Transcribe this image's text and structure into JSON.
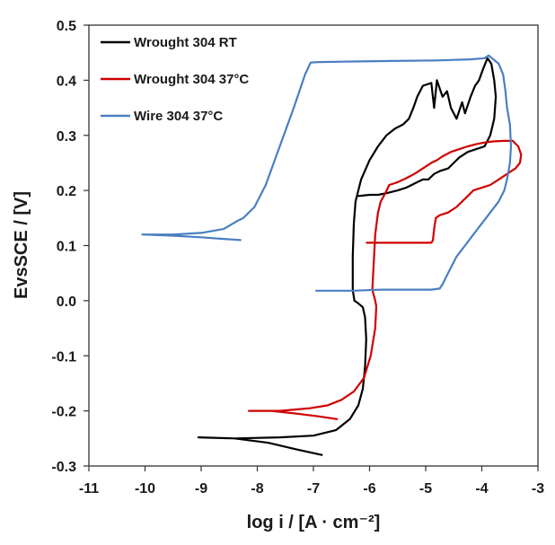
{
  "chart_data": {
    "type": "line",
    "title": "",
    "xlabel": "log i / [A · cm⁻²]",
    "ylabel": "EvsSCE / [V]",
    "xlim": [
      -11,
      -3
    ],
    "ylim": [
      -0.3,
      0.5
    ],
    "xticks": [
      -11,
      -10,
      -9,
      -8,
      -7,
      -6,
      -5,
      -4,
      -3
    ],
    "yticks": [
      -0.3,
      -0.2,
      -0.1,
      0.0,
      0.1,
      0.2,
      0.3,
      0.4,
      0.5
    ],
    "xtick_labels": [
      "-11",
      "-10",
      "-9",
      "-8",
      "-7",
      "-6",
      "-5",
      "-4",
      "-3"
    ],
    "ytick_labels": [
      "-0.3",
      "-0.2",
      "-0.1",
      "0.0",
      "0.1",
      "0.2",
      "0.3",
      "0.4",
      "0.5"
    ],
    "grid": false,
    "legend_position": "top-left",
    "series": [
      {
        "name": "Wrought 304 RT",
        "color": "#000000",
        "points": [
          [
            -6.85,
            -0.28
          ],
          [
            -7.3,
            -0.27
          ],
          [
            -7.8,
            -0.258
          ],
          [
            -8.4,
            -0.25
          ],
          [
            -9.05,
            -0.248
          ],
          [
            -8.4,
            -0.25
          ],
          [
            -7.6,
            -0.248
          ],
          [
            -7.0,
            -0.245
          ],
          [
            -6.6,
            -0.235
          ],
          [
            -6.35,
            -0.215
          ],
          [
            -6.2,
            -0.19
          ],
          [
            -6.12,
            -0.16
          ],
          [
            -6.08,
            -0.12
          ],
          [
            -6.06,
            -0.07
          ],
          [
            -6.08,
            -0.03
          ],
          [
            -6.12,
            -0.012
          ],
          [
            -6.2,
            -0.005
          ],
          [
            -6.27,
            0.0
          ],
          [
            -6.3,
            0.02
          ],
          [
            -6.3,
            0.08
          ],
          [
            -6.28,
            0.14
          ],
          [
            -6.25,
            0.18
          ],
          [
            -6.15,
            0.22
          ],
          [
            -6.0,
            0.255
          ],
          [
            -5.85,
            0.28
          ],
          [
            -5.7,
            0.3
          ],
          [
            -5.55,
            0.312
          ],
          [
            -5.4,
            0.32
          ],
          [
            -5.3,
            0.33
          ],
          [
            -5.22,
            0.35
          ],
          [
            -5.15,
            0.37
          ],
          [
            -5.05,
            0.39
          ],
          [
            -4.9,
            0.395
          ],
          [
            -4.85,
            0.35
          ],
          [
            -4.8,
            0.4
          ],
          [
            -4.7,
            0.37
          ],
          [
            -4.62,
            0.38
          ],
          [
            -4.55,
            0.35
          ],
          [
            -4.45,
            0.33
          ],
          [
            -4.35,
            0.36
          ],
          [
            -4.3,
            0.34
          ],
          [
            -4.2,
            0.37
          ],
          [
            -4.12,
            0.39
          ],
          [
            -4.05,
            0.4
          ],
          [
            -3.98,
            0.42
          ],
          [
            -3.9,
            0.44
          ],
          [
            -3.83,
            0.43
          ],
          [
            -3.78,
            0.4
          ],
          [
            -3.75,
            0.37
          ],
          [
            -3.78,
            0.33
          ],
          [
            -3.85,
            0.3
          ],
          [
            -3.95,
            0.28
          ],
          [
            -4.1,
            0.275
          ],
          [
            -4.25,
            0.27
          ],
          [
            -4.4,
            0.26
          ],
          [
            -4.5,
            0.25
          ],
          [
            -4.6,
            0.24
          ],
          [
            -4.75,
            0.235
          ],
          [
            -4.85,
            0.23
          ],
          [
            -4.95,
            0.22
          ],
          [
            -5.05,
            0.22
          ],
          [
            -5.15,
            0.215
          ],
          [
            -5.25,
            0.21
          ],
          [
            -5.35,
            0.205
          ],
          [
            -5.5,
            0.2
          ],
          [
            -5.7,
            0.195
          ],
          [
            -5.85,
            0.192
          ],
          [
            -6.0,
            0.192
          ],
          [
            -6.2,
            0.19
          ]
        ]
      },
      {
        "name": "Wrought 304 37°C",
        "color": "#d00000",
        "points": [
          [
            -6.58,
            -0.215
          ],
          [
            -6.9,
            -0.21
          ],
          [
            -7.3,
            -0.205
          ],
          [
            -7.75,
            -0.2
          ],
          [
            -8.15,
            -0.2
          ],
          [
            -7.6,
            -0.2
          ],
          [
            -7.05,
            -0.195
          ],
          [
            -6.75,
            -0.19
          ],
          [
            -6.5,
            -0.18
          ],
          [
            -6.28,
            -0.165
          ],
          [
            -6.1,
            -0.14
          ],
          [
            -5.98,
            -0.1
          ],
          [
            -5.9,
            -0.05
          ],
          [
            -5.88,
            -0.01
          ],
          [
            -5.9,
            0.0
          ],
          [
            -5.95,
            0.02
          ],
          [
            -5.93,
            0.06
          ],
          [
            -5.9,
            0.12
          ],
          [
            -5.85,
            0.16
          ],
          [
            -5.8,
            0.18
          ],
          [
            -5.72,
            0.195
          ],
          [
            -5.65,
            0.21
          ],
          [
            -5.5,
            0.215
          ],
          [
            -5.35,
            0.222
          ],
          [
            -5.2,
            0.23
          ],
          [
            -5.05,
            0.24
          ],
          [
            -4.9,
            0.25
          ],
          [
            -4.8,
            0.255
          ],
          [
            -4.7,
            0.262
          ],
          [
            -4.55,
            0.27
          ],
          [
            -4.4,
            0.275
          ],
          [
            -4.25,
            0.28
          ],
          [
            -4.1,
            0.284
          ],
          [
            -3.95,
            0.287
          ],
          [
            -3.8,
            0.289
          ],
          [
            -3.6,
            0.29
          ],
          [
            -3.45,
            0.29
          ],
          [
            -3.35,
            0.28
          ],
          [
            -3.3,
            0.265
          ],
          [
            -3.32,
            0.25
          ],
          [
            -3.4,
            0.24
          ],
          [
            -3.55,
            0.23
          ],
          [
            -3.7,
            0.22
          ],
          [
            -3.85,
            0.21
          ],
          [
            -4.0,
            0.205
          ],
          [
            -4.15,
            0.2
          ],
          [
            -4.25,
            0.19
          ],
          [
            -4.35,
            0.18
          ],
          [
            -4.45,
            0.17
          ],
          [
            -4.6,
            0.16
          ],
          [
            -4.75,
            0.155
          ],
          [
            -4.82,
            0.15
          ],
          [
            -4.85,
            0.13
          ],
          [
            -4.87,
            0.11
          ],
          [
            -4.9,
            0.105
          ],
          [
            -5.2,
            0.105
          ],
          [
            -5.6,
            0.105
          ],
          [
            -5.95,
            0.105
          ],
          [
            -6.05,
            0.105
          ]
        ]
      },
      {
        "name": "Wire 304 37°C",
        "color": "#4a7fc1",
        "points": [
          [
            -8.3,
            0.11
          ],
          [
            -8.6,
            0.112
          ],
          [
            -9.0,
            0.115
          ],
          [
            -9.5,
            0.118
          ],
          [
            -10.05,
            0.12
          ],
          [
            -9.5,
            0.12
          ],
          [
            -9.0,
            0.123
          ],
          [
            -8.6,
            0.13
          ],
          [
            -8.35,
            0.145
          ],
          [
            -8.25,
            0.15
          ],
          [
            -8.05,
            0.17
          ],
          [
            -7.85,
            0.21
          ],
          [
            -7.6,
            0.28
          ],
          [
            -7.35,
            0.35
          ],
          [
            -7.15,
            0.41
          ],
          [
            -7.05,
            0.432
          ],
          [
            -6.9,
            0.433
          ],
          [
            -6.3,
            0.434
          ],
          [
            -5.6,
            0.435
          ],
          [
            -4.8,
            0.436
          ],
          [
            -4.2,
            0.438
          ],
          [
            -3.95,
            0.44
          ],
          [
            -3.88,
            0.445
          ],
          [
            -3.82,
            0.44
          ],
          [
            -3.7,
            0.43
          ],
          [
            -3.62,
            0.41
          ],
          [
            -3.58,
            0.38
          ],
          [
            -3.55,
            0.35
          ],
          [
            -3.5,
            0.32
          ],
          [
            -3.48,
            0.28
          ],
          [
            -3.5,
            0.25
          ],
          [
            -3.55,
            0.22
          ],
          [
            -3.6,
            0.2
          ],
          [
            -3.7,
            0.18
          ],
          [
            -3.85,
            0.16
          ],
          [
            -4.0,
            0.14
          ],
          [
            -4.15,
            0.12
          ],
          [
            -4.3,
            0.1
          ],
          [
            -4.45,
            0.08
          ],
          [
            -4.55,
            0.06
          ],
          [
            -4.65,
            0.04
          ],
          [
            -4.7,
            0.03
          ],
          [
            -4.75,
            0.022
          ],
          [
            -4.9,
            0.02
          ],
          [
            -5.3,
            0.02
          ],
          [
            -5.8,
            0.02
          ],
          [
            -6.3,
            0.018
          ],
          [
            -6.95,
            0.018
          ]
        ]
      }
    ]
  }
}
